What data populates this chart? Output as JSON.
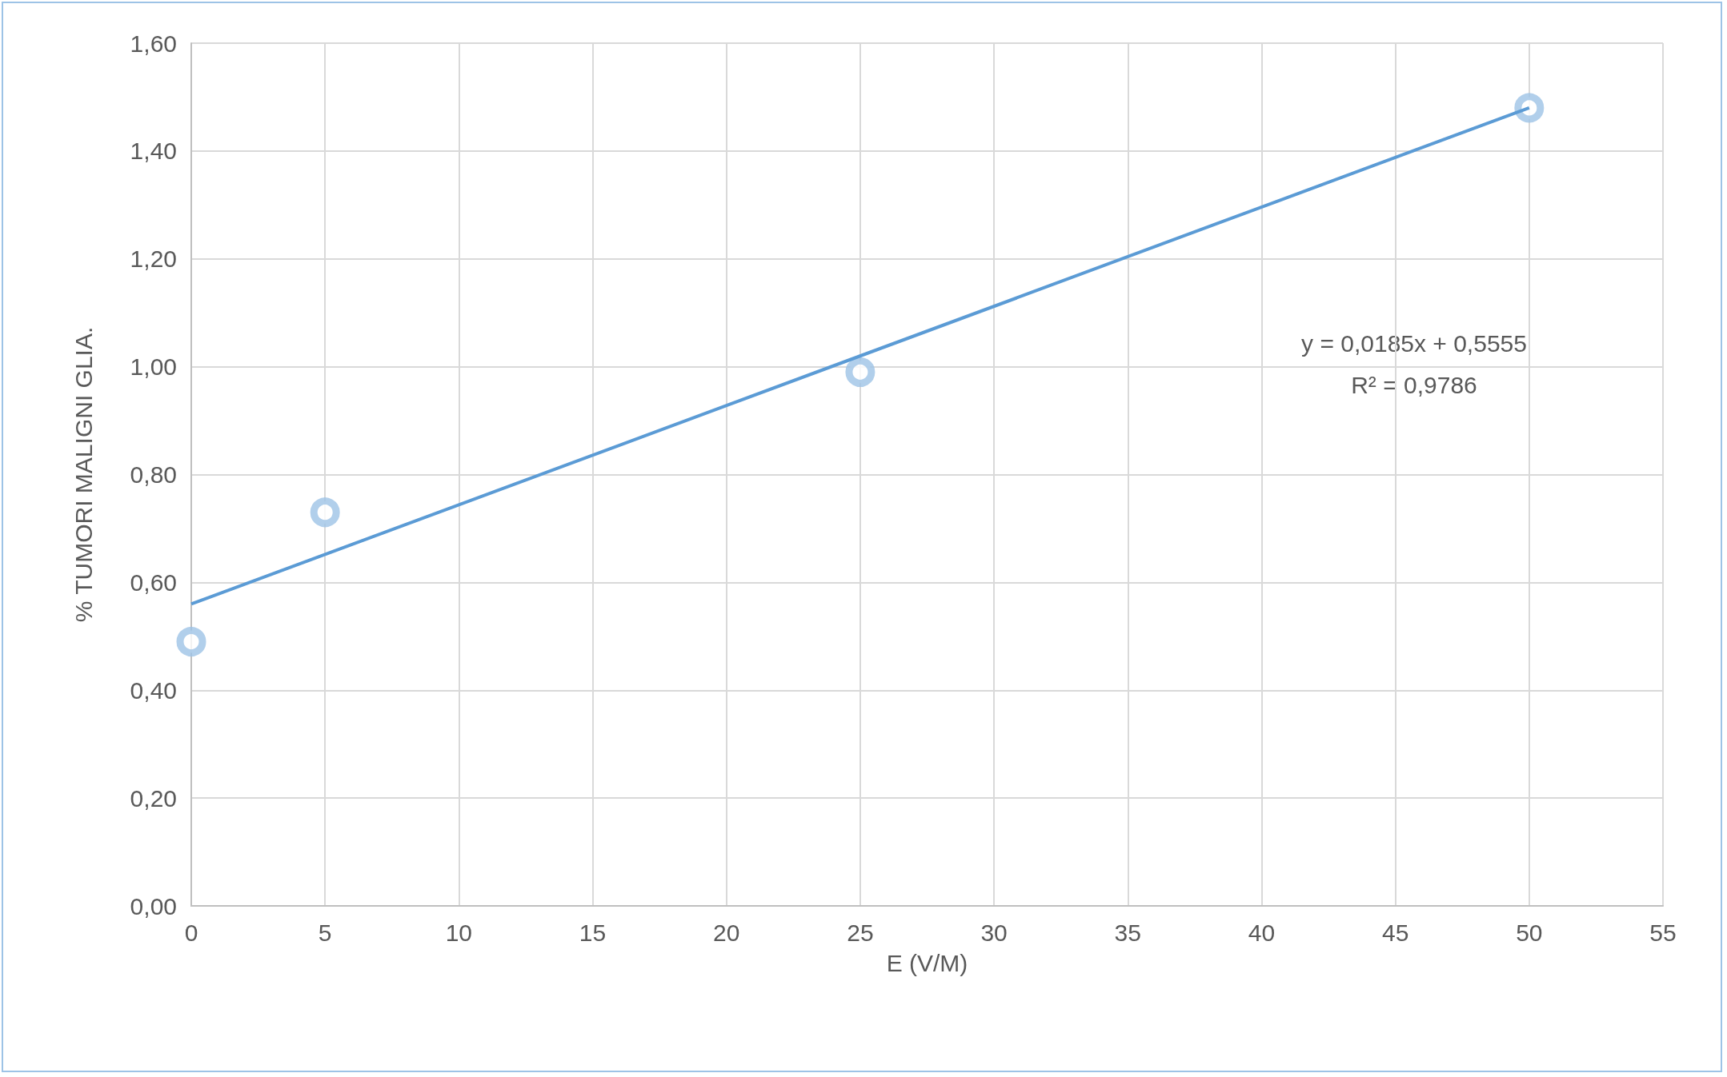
{
  "chart_data": {
    "type": "scatter",
    "xlabel": "E (V/M)",
    "ylabel": "% TUMORI MALIGNI GLIA.",
    "annotations": [
      "y = 0,0185x + 0,5555",
      "R² = 0,9786"
    ],
    "series": [
      {
        "color": "#9dc3e6",
        "marker": "circle",
        "x": [
          0,
          5,
          25,
          50
        ],
        "values": [
          0.49,
          0.73,
          0.99,
          1.48
        ]
      },
      {
        "type": "line",
        "color": "#5b9bd5",
        "marker": "none",
        "line_style": "solid",
        "x": [
          0,
          50
        ],
        "values": [
          0.56,
          1.48
        ]
      }
    ],
    "xlim": [
      0,
      55
    ],
    "xticks": [
      0,
      5,
      10,
      15,
      20,
      25,
      30,
      35,
      40,
      45,
      50,
      55
    ],
    "ylim": [
      0,
      1.6
    ],
    "yticks": [
      {
        "value": 0,
        "label": "0,00"
      },
      {
        "value": 0.2,
        "label": "0,20"
      },
      {
        "value": 0.4,
        "label": "0,40"
      },
      {
        "value": 0.6,
        "label": "0,60"
      },
      {
        "value": 0.8,
        "label": "0,80"
      },
      {
        "value": 1.0,
        "label": "1,00"
      },
      {
        "value": 1.2,
        "label": "1,20"
      },
      {
        "value": 1.4,
        "label": "1,40"
      },
      {
        "value": 1.6,
        "label": "1,60"
      }
    ],
    "grid": true
  }
}
